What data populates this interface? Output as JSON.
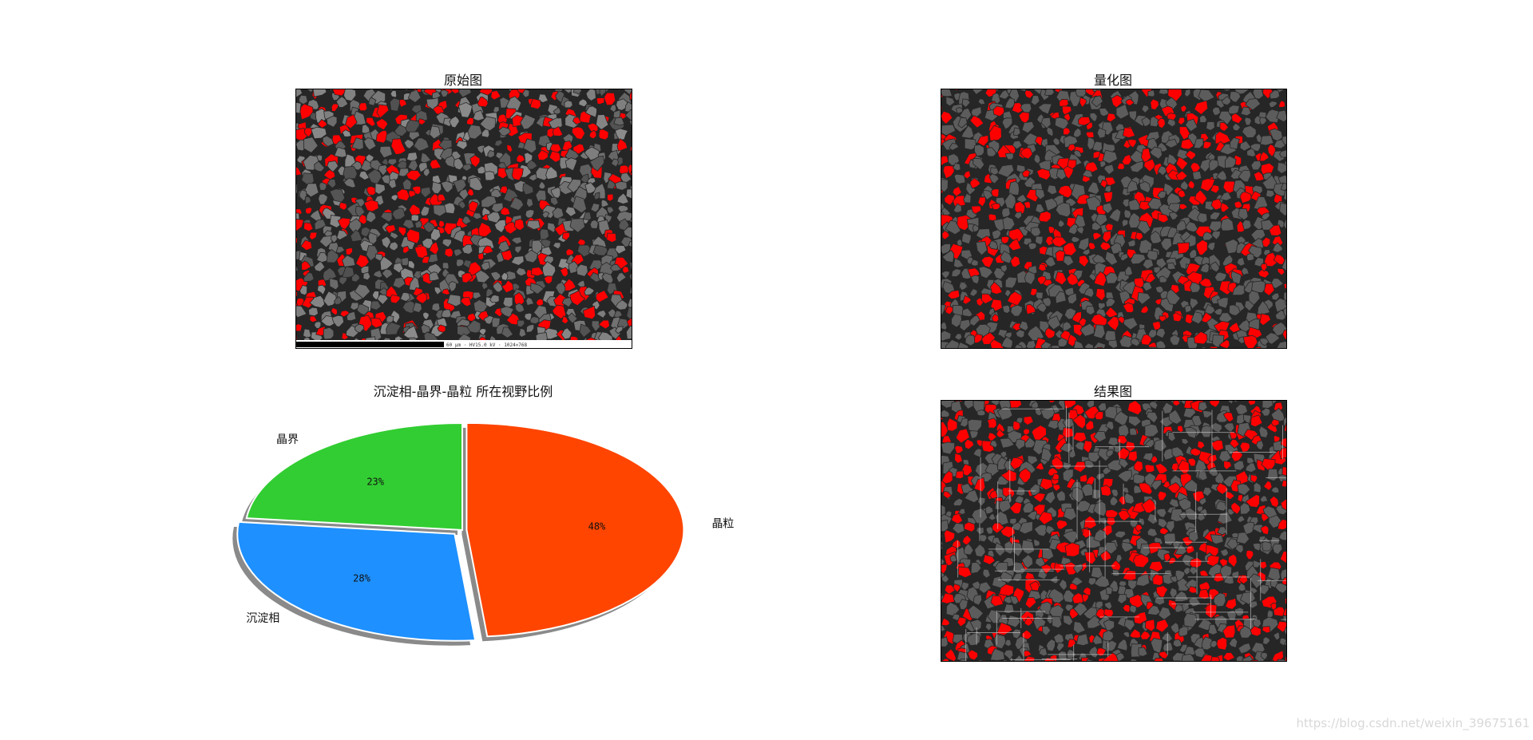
{
  "panels": {
    "original": {
      "title": "原始图"
    },
    "quantized": {
      "title": "量化图"
    },
    "result": {
      "title": "结果图"
    }
  },
  "scale_bar_text": "60 μm · HV15.0 kV · 1024×768",
  "chart_data": {
    "type": "pie",
    "title": "沉淀相-晶界-晶粒 所在视野比例",
    "categories": [
      "晶界",
      "沉淀相",
      "晶粒"
    ],
    "values": [
      23,
      28,
      48
    ],
    "value_labels": [
      "23%",
      "28%",
      "48%"
    ],
    "colors": [
      "#32cd32",
      "#1e90ff",
      "#ff4500"
    ],
    "explode": [
      0,
      0.05,
      0.02
    ],
    "shadow": true,
    "start_angle_deg": 90,
    "legend": "none"
  },
  "colors": {
    "phase": "#ff0000",
    "matrix": "#5c5c5c",
    "boundary": "#262626"
  },
  "watermark": "https://blog.csdn.net/weixin_39675161"
}
